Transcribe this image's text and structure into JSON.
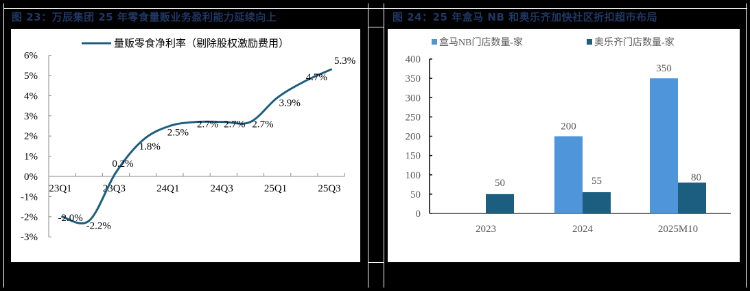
{
  "figures": [
    {
      "title": "图 23：万辰集团 25 年零食量贩业务盈利能力延续向上",
      "legend": "量贩零食净利率（剔除股权激励费用）"
    },
    {
      "title": "图 24：25 年盒马 NB 和奥乐齐加快社区折扣超市布局",
      "legend": [
        "盒马NB门店数量-家",
        "奥乐齐门店数量-家"
      ]
    }
  ],
  "colors": {
    "title": "#1F3864",
    "line": "#1B5E80",
    "bar_hema": "#4E95D9",
    "bar_aldi": "#1B5E80"
  },
  "chart_data": [
    {
      "type": "line",
      "title": "图 23：万辰集团 25 年零食量贩业务盈利能力延续向上",
      "series": [
        {
          "name": "量贩零食净利率（剔除股权激励费用）",
          "x": [
            "23Q1",
            "23Q2",
            "23Q3",
            "23Q4",
            "24Q1",
            "24Q2",
            "24Q3",
            "24Q4",
            "25Q1",
            "25Q2",
            "25Q3"
          ],
          "values": [
            -2.0,
            -2.2,
            0.2,
            1.8,
            2.5,
            2.7,
            2.7,
            2.7,
            3.9,
            4.7,
            5.3
          ],
          "labels": [
            "-2.0%",
            "-2.2%",
            "0.2%",
            "1.8%",
            "2.5%",
            "2.7%",
            "2.7%",
            "2.7%",
            "3.9%",
            "4.7%",
            "5.3%"
          ]
        }
      ],
      "x_tick_labels": [
        "23Q1",
        "23Q3",
        "24Q1",
        "24Q3",
        "25Q1",
        "25Q3"
      ],
      "y_tick_labels": [
        "6%",
        "5%",
        "4%",
        "3%",
        "2%",
        "1%",
        "0%",
        "-1%",
        "-2%",
        "-3%"
      ],
      "ylim": [
        -3,
        6
      ],
      "xlabel": "",
      "ylabel": "",
      "grid": false,
      "legend_position": "top"
    },
    {
      "type": "bar",
      "title": "图 24：25 年盒马 NB 和奥乐齐加快社区折扣超市布局",
      "categories": [
        "2023",
        "2024",
        "2025M10"
      ],
      "series": [
        {
          "name": "盒马NB门店数量-家",
          "values": [
            null,
            200,
            350
          ]
        },
        {
          "name": "奥乐齐门店数量-家",
          "values": [
            50,
            55,
            80
          ]
        }
      ],
      "y_tick_labels": [
        "400",
        "350",
        "300",
        "250",
        "200",
        "150",
        "100",
        "50",
        "0"
      ],
      "ylim": [
        0,
        400
      ],
      "xlabel": "",
      "ylabel": "",
      "grid": false,
      "legend_position": "top"
    }
  ]
}
